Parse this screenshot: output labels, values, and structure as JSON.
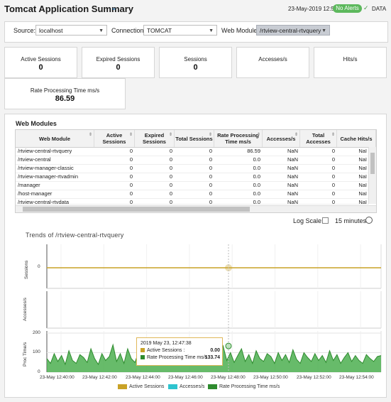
{
  "header": {
    "title": "Tomcat Application Summary",
    "date": "23-May-2019 12:54",
    "alerts_badge": "No Alerts",
    "data_label": "DATA"
  },
  "filters": {
    "source_label": "Source:",
    "source_value": "localhost",
    "connection_label": "Connection:",
    "connection_value": "TOMCAT",
    "webmodule_label": "Web Module:",
    "webmodule_value": "/rtview-central-rtvquery"
  },
  "kpis": [
    {
      "label": "Active Sessions",
      "value": "0"
    },
    {
      "label": "Expired Sessions",
      "value": "0"
    },
    {
      "label": "Sessions",
      "value": "0"
    },
    {
      "label": "Accesses/s",
      "value": ""
    },
    {
      "label": "Hits/s",
      "value": ""
    },
    {
      "label": "Rate Processing Time ms/s",
      "value": "86.59"
    }
  ],
  "web_modules": {
    "title": "Web Modules",
    "columns": [
      "Web Module",
      "Active Sessions",
      "Expired Sessions",
      "Total Sessions",
      "Rate Processing Time ms/s",
      "Accesses/s",
      "Total Accesses",
      "Cache Hits/s"
    ],
    "rows": [
      [
        "/rtview-central-rtvquery",
        "0",
        "0",
        "0",
        "86.59",
        "NaN",
        "0",
        "NaI"
      ],
      [
        "/rtview-central",
        "0",
        "0",
        "0",
        "0.0",
        "NaN",
        "0",
        "NaI"
      ],
      [
        "/rtview-manager-classic",
        "0",
        "0",
        "0",
        "0.0",
        "NaN",
        "0",
        "NaI"
      ],
      [
        "/rtview-manager-rtvadmin",
        "0",
        "0",
        "0",
        "0.0",
        "NaN",
        "0",
        "NaI"
      ],
      [
        "/manager",
        "0",
        "0",
        "0",
        "0.0",
        "NaN",
        "0",
        "NaI"
      ],
      [
        "/host-manager",
        "0",
        "0",
        "0",
        "0.0",
        "NaN",
        "0",
        "NaI"
      ],
      [
        "/rtview-central-rtvdata",
        "0",
        "0",
        "0",
        "0.0",
        "NaN",
        "0",
        "NaI"
      ]
    ]
  },
  "controls": {
    "log_scale_label": "Log Scale:",
    "time_range": "15 minutes"
  },
  "trends": {
    "title": "Trends of /rtview-central-rtvquery",
    "panel_labels": [
      "Sessions",
      "Accesses/s",
      "Proc Time/s"
    ],
    "sessions_tick": "0",
    "proc_ticks": [
      "200",
      "100",
      "0"
    ],
    "x_ticks": [
      "23-May 12:40:00",
      "23-May 12:42:00",
      "23-May 12:44:00",
      "23-May 12:46:00",
      "23-May 12:48:00",
      "23-May 12:50:00",
      "23-May 12:52:00",
      "23-May 12:54:00"
    ],
    "tooltip": {
      "time": "2019 May 23, 12:47:38",
      "active_label": "Active Sessions :",
      "active_value": "0.00",
      "rate_label": "Rate Processing Time ms/s :",
      "rate_value": "133.74"
    },
    "legend": [
      "Active Sessions",
      "Accesses/s",
      "Rate Processing Time ms/s"
    ]
  },
  "colors": {
    "accent": "#2a7ab8",
    "badge_green": "#5cb85c",
    "sessions_line": "#c9a227",
    "accesses_series": "#2ec4cf",
    "rate_series": "#2e8b2e"
  },
  "chart_data": {
    "type": "area",
    "title": "Trends of /rtview-central-rtvquery",
    "xlabel": "",
    "ylabel": "Proc Time/s",
    "ylim": [
      0,
      200
    ],
    "series": [
      {
        "name": "Active Sessions",
        "values": [
          0,
          0,
          0,
          0,
          0,
          0,
          0,
          0,
          0,
          0,
          0,
          0,
          0,
          0,
          0,
          0,
          0,
          0,
          0,
          0,
          0,
          0,
          0,
          0,
          0,
          0,
          0,
          0,
          0,
          0,
          0,
          0,
          0,
          0,
          0,
          0,
          0,
          0,
          0,
          0,
          0,
          0,
          0,
          0,
          0,
          0,
          0,
          0,
          0,
          0,
          0,
          0,
          0,
          0,
          0,
          0,
          0,
          0,
          0,
          0,
          0,
          0,
          0,
          0,
          0,
          0,
          0,
          0,
          0,
          0,
          0,
          0,
          0,
          0,
          0,
          0,
          0,
          0,
          0,
          0,
          0,
          0,
          0,
          0,
          0,
          0,
          0,
          0,
          0,
          0,
          0,
          0
        ]
      },
      {
        "name": "Rate Processing Time ms/s",
        "values": [
          70,
          45,
          95,
          55,
          85,
          40,
          110,
          60,
          45,
          90,
          75,
          50,
          120,
          70,
          40,
          95,
          60,
          80,
          140,
          55,
          95,
          45,
          120,
          70,
          50,
          105,
          60,
          90,
          45,
          75,
          130,
          60,
          85,
          40,
          100,
          70,
          55,
          125,
          65,
          45,
          95,
          80,
          50,
          110,
          60,
          90,
          45,
          70,
          134,
          60,
          100,
          50,
          85,
          120,
          55,
          90,
          45,
          110,
          70,
          55,
          95,
          80,
          45,
          100,
          60,
          90,
          50,
          115,
          65,
          45,
          100,
          75,
          55,
          95,
          60,
          85,
          50,
          110,
          60,
          90,
          45,
          75,
          100,
          55,
          85,
          60,
          45,
          90,
          70,
          55,
          80,
          85
        ]
      }
    ]
  }
}
